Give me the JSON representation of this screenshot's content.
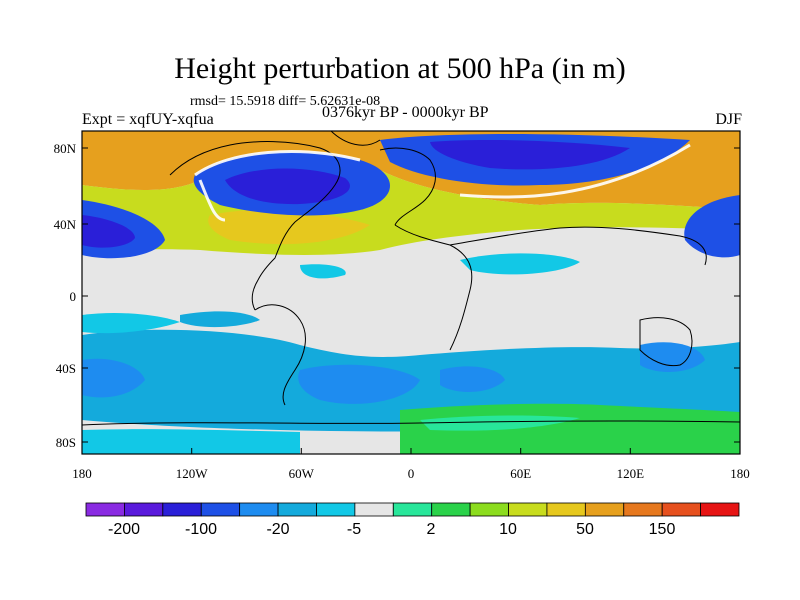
{
  "header": {
    "title": "Height perturbation at 500 hPa (in m)",
    "stats": "rmsd= 15.5918 diff= 5.62631e-08",
    "experiment": "Expt = xqfUY-xqfua",
    "period": "0376kyr BP - 0000kyr BP",
    "season": "DJF"
  },
  "axes": {
    "y_ticks": [
      "80N",
      "40N",
      "0",
      "40S",
      "80S"
    ],
    "x_ticks": [
      "180",
      "120W",
      "60W",
      "0",
      "60E",
      "120E",
      "180"
    ]
  },
  "colorbar": {
    "labels": [
      "-200",
      "-100",
      "-20",
      "-5",
      "2",
      "10",
      "50",
      "150"
    ],
    "colors": [
      "#8a2be2",
      "#5a1adc",
      "#2a1fd8",
      "#1e50e6",
      "#1e8cf0",
      "#14aadc",
      "#12c8e6",
      "#e6e6e6",
      "#28e69a",
      "#2ad24a",
      "#8cdc1e",
      "#c8dc1e",
      "#e6c81e",
      "#e6a01e",
      "#e6781e",
      "#e6501e",
      "#e61414"
    ]
  },
  "palette": {
    "land": "#e6e6e6"
  }
}
